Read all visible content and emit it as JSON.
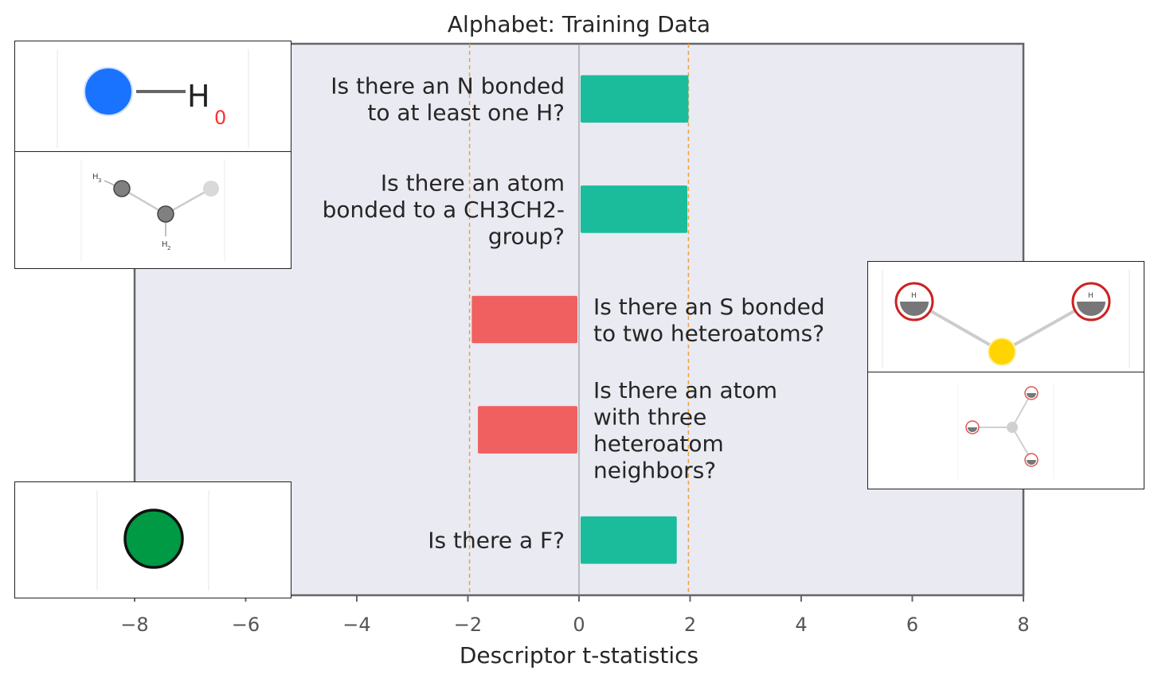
{
  "chart_data": {
    "type": "bar",
    "orientation": "horizontal",
    "title": "Alphabet: Training Data",
    "xlabel": "Descriptor t-statistics",
    "ylabel": "",
    "xlim": [
      -8,
      8
    ],
    "xticks": [
      -8,
      -6,
      -4,
      -2,
      0,
      2,
      4,
      6,
      8
    ],
    "xtick_labels": [
      "−8",
      "−6",
      "−4",
      "−2",
      "0",
      "2",
      "4",
      "6",
      "8"
    ],
    "significance_lines": [
      -1.97,
      1.97
    ],
    "grid": false,
    "legend": "none",
    "bars": [
      {
        "label": "Is there an N bonded to at least one H?",
        "value": 1.97,
        "label_lines": [
          "Is there an N bonded",
          "to at least one H?"
        ]
      },
      {
        "label": "Is there an atom bonded to a CH3CH2- group?",
        "value": 1.95,
        "label_lines": [
          "Is there an atom",
          "bonded to a CH3CH2-",
          "group?"
        ]
      },
      {
        "label": "Is there an S bonded to two heteroatoms?",
        "value": -1.93,
        "label_lines": [
          "Is there an S bonded",
          "to two heteroatoms?"
        ]
      },
      {
        "label": "Is there an atom with three heteroatom neighbors?",
        "value": -1.82,
        "label_lines": [
          "Is there an atom",
          "with three",
          "heteroatom",
          "neighbors?"
        ]
      },
      {
        "label": "Is there a F?",
        "value": 1.76,
        "label_lines": [
          "Is there a F?"
        ]
      }
    ],
    "colors": {
      "positive": "#1abc9c",
      "negative": "#f06060",
      "background": "#eaeaf2",
      "significance": "#f0a040",
      "zero_line": "#888888",
      "frame": "#666666"
    }
  },
  "insets": {
    "n_h": {
      "text_h": "H",
      "text_sub": "0"
    },
    "ethyl": {
      "text_h1": "H",
      "text_sub1": "3",
      "text_h2": "H",
      "text_sub2": "2"
    },
    "s_hetero": {
      "text_1": "H",
      "text_2": "H"
    }
  }
}
